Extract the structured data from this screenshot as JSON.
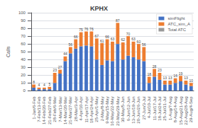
{
  "chart_data": {
    "type": "bar",
    "title": "KPHX",
    "ylabel": "Calls",
    "categories": [
      "1-Jan/6-Feb",
      "7-Feb/13-Feb",
      "14-Feb/20-Feb",
      "21-Feb/27-Feb",
      "28-Feb/6-Mar",
      "7-Mar/13-Mar",
      "14-Mar/20-Mar",
      "21-Mar/27-Mar",
      "28-Mar/3-Apr",
      "4-Apr/10-Apr",
      "11-Apr/17-Apr",
      "18-Apr/24-Apr",
      "25-Apr/1-May",
      "2-May/8-May",
      "9-May/15-May",
      "16-May/22-May",
      "23-May/29-May",
      "30-May/5-Jun",
      "6-Jun/12-Jun",
      "13-Jun/19-Jun",
      "20-Jun/26-Jun",
      "27-Jun/3-Jul",
      "4-Jul/10-Jul",
      "11-Jul/17-Jul",
      "18-Jul/24-Jul",
      "25-Jul/31-Jul",
      "1-Aug/7-Aug",
      "8-Aug/14-Aug",
      "15-Aug/21-Aug",
      "22-Aug/28-Aug",
      "29-Aug/4-Sep"
    ],
    "series": [
      {
        "name": "simFlight",
        "color": "#4472c4",
        "values": [
          4,
          2,
          2,
          2,
          10,
          22,
          38,
          48,
          54,
          57,
          58,
          57,
          40,
          33,
          39,
          38,
          60,
          40,
          45,
          43,
          40,
          38,
          10,
          18,
          14,
          8,
          8,
          10,
          12,
          8,
          6
        ]
      },
      {
        "name": "ATC_sim_A",
        "color": "#ed7d31",
        "values": [
          4,
          2,
          2,
          3,
          13,
          5,
          6,
          8,
          12,
          18,
          18,
          19,
          27,
          28,
          27,
          25,
          27,
          22,
          25,
          20,
          20,
          18,
          8,
          10,
          9,
          5,
          5,
          6,
          7,
          5,
          4
        ]
      },
      {
        "name": "Total ATC",
        "color": "gray",
        "type": "scatter",
        "marker": "none",
        "data_labels": true,
        "values": [
          8,
          4,
          4,
          5,
          23,
          27,
          44,
          56,
          66,
          75,
          76,
          76,
          67,
          61,
          66,
          63,
          87,
          62,
          70,
          63,
          60,
          56,
          18,
          28,
          23,
          13,
          13,
          16,
          19,
          13,
          10
        ]
      }
    ],
    "stacked": true,
    "ylim": [
      0,
      100
    ],
    "yticks": [
      0,
      10,
      20,
      30,
      40,
      50,
      60,
      70,
      80,
      90,
      100
    ],
    "grid": true,
    "legend": "upper right"
  }
}
